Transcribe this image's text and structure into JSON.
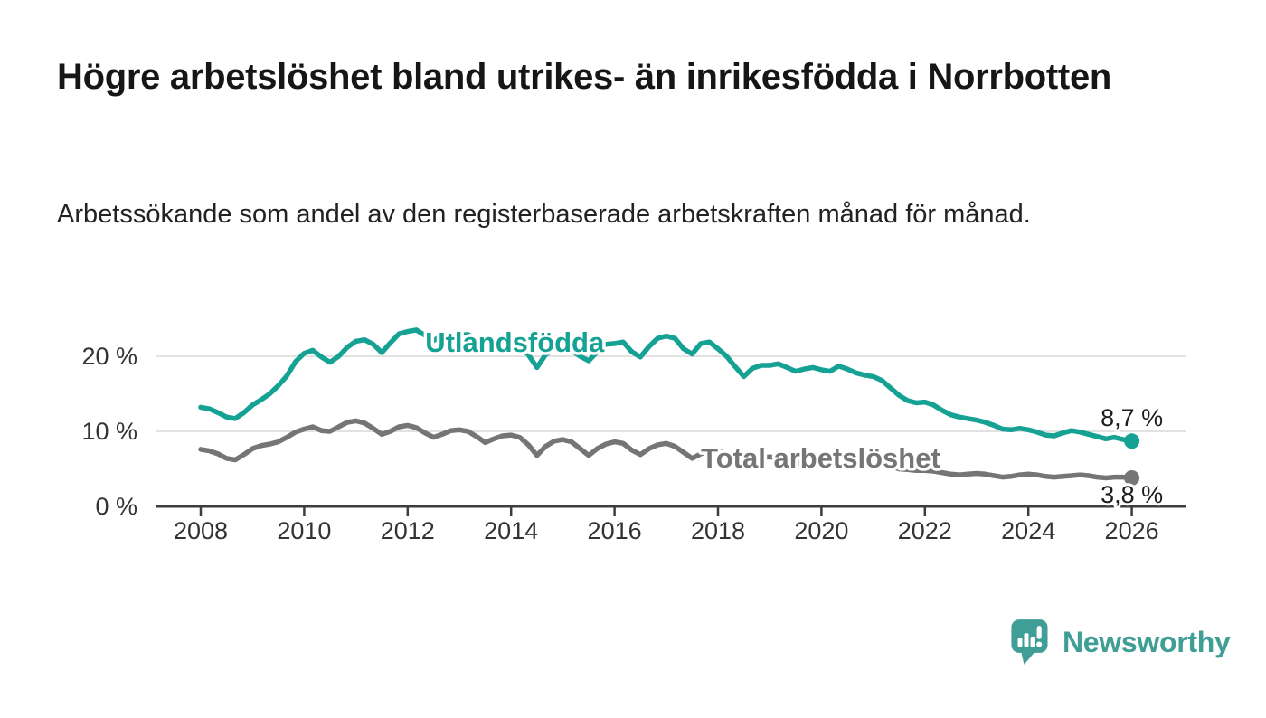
{
  "header": {
    "title": "Högre arbetslöshet bland utrikes- än inrikesfödda i Norrbotten",
    "subtitle": "Arbetssökande som andel av den registerbaserade arbetskraften månad för månad."
  },
  "branding": {
    "name": "Newsworthy",
    "color": "#3f9e96",
    "icon": "newsworthy-bubble-chart-icon"
  },
  "chart_data": {
    "type": "line",
    "title": "Högre arbetslöshet bland utrikes- än inrikesfödda i Norrbotten",
    "xlabel": "",
    "ylabel": "",
    "x_start": 2008.0,
    "x_step_months": 2,
    "x_ticks": [
      2008,
      2010,
      2012,
      2014,
      2016,
      2018,
      2020,
      2022,
      2024,
      2026
    ],
    "x_tick_labels": [
      "2008",
      "2010",
      "2012",
      "2014",
      "2016",
      "2018",
      "2020",
      "2022",
      "2024",
      "2026"
    ],
    "y_ticks": [
      0,
      10,
      20
    ],
    "y_tick_labels": [
      "0 %",
      "10 %",
      "20 %"
    ],
    "ylim": [
      0,
      25
    ],
    "grid": "horizontal",
    "legend_position": "inline-labels",
    "colors": {
      "axis": "#3d3d3d",
      "gridline": "#d9d9d9",
      "value_label": "#1d1d1d"
    },
    "series": [
      {
        "name": "Utlandsfödda",
        "color": "#15a294",
        "end_label": "8,7 %",
        "end_value": 8.7,
        "end_label_position": "above",
        "label_year": 2012.34,
        "label_value": 20.6,
        "values": [
          13.2,
          13.0,
          12.5,
          11.9,
          11.7,
          12.5,
          13.5,
          14.2,
          15.0,
          16.1,
          17.4,
          19.3,
          20.4,
          20.8,
          19.9,
          19.2,
          20.0,
          21.2,
          22.0,
          22.2,
          21.6,
          20.5,
          21.8,
          23.0,
          23.3,
          23.5,
          22.8,
          22.1,
          22.7,
          23.0,
          22.8,
          22.9,
          22.1,
          21.3,
          21.9,
          22.1,
          21.9,
          21.3,
          20.2,
          18.5,
          20.2,
          21.0,
          21.2,
          20.8,
          20.0,
          19.4,
          20.6,
          21.6,
          21.7,
          21.9,
          20.6,
          19.9,
          21.3,
          22.4,
          22.7,
          22.4,
          21.0,
          20.3,
          21.7,
          21.9,
          21.0,
          20.0,
          18.6,
          17.3,
          18.4,
          18.8,
          18.8,
          19.0,
          18.5,
          18.0,
          18.3,
          18.5,
          18.2,
          18.0,
          18.7,
          18.3,
          17.8,
          17.5,
          17.3,
          16.8,
          15.8,
          14.8,
          14.1,
          13.8,
          13.9,
          13.5,
          12.8,
          12.2,
          11.9,
          11.7,
          11.5,
          11.2,
          10.8,
          10.3,
          10.2,
          10.4,
          10.2,
          9.9,
          9.5,
          9.4,
          9.8,
          10.1,
          9.9,
          9.6,
          9.3,
          9.0,
          9.2,
          8.9,
          8.7
        ]
      },
      {
        "name": "Total arbetslöshet",
        "color": "#757575",
        "end_label": "3,8 %",
        "end_value": 3.8,
        "end_label_position": "below",
        "label_year": 2017.67,
        "label_value": 5.2,
        "values": [
          7.6,
          7.4,
          7.0,
          6.4,
          6.2,
          6.9,
          7.7,
          8.1,
          8.3,
          8.6,
          9.2,
          9.9,
          10.3,
          10.6,
          10.1,
          10.0,
          10.6,
          11.2,
          11.4,
          11.1,
          10.4,
          9.6,
          10.0,
          10.6,
          10.8,
          10.5,
          9.8,
          9.2,
          9.6,
          10.1,
          10.2,
          10.0,
          9.3,
          8.5,
          9.0,
          9.4,
          9.5,
          9.2,
          8.2,
          6.8,
          8.0,
          8.7,
          8.9,
          8.6,
          7.7,
          6.8,
          7.7,
          8.3,
          8.6,
          8.4,
          7.5,
          6.9,
          7.7,
          8.2,
          8.4,
          8.0,
          7.2,
          6.4,
          7.0,
          7.4,
          7.4,
          7.1,
          6.4,
          5.8,
          6.2,
          6.5,
          6.6,
          6.4,
          6.0,
          5.7,
          5.9,
          6.1,
          6.2,
          6.3,
          6.8,
          6.6,
          6.3,
          6.1,
          6.0,
          5.8,
          5.4,
          5.0,
          4.9,
          4.8,
          4.8,
          4.7,
          4.5,
          4.3,
          4.2,
          4.3,
          4.4,
          4.3,
          4.1,
          3.9,
          4.0,
          4.2,
          4.3,
          4.2,
          4.0,
          3.9,
          4.0,
          4.1,
          4.2,
          4.1,
          3.9,
          3.8,
          3.9,
          3.9,
          3.8
        ]
      }
    ]
  }
}
